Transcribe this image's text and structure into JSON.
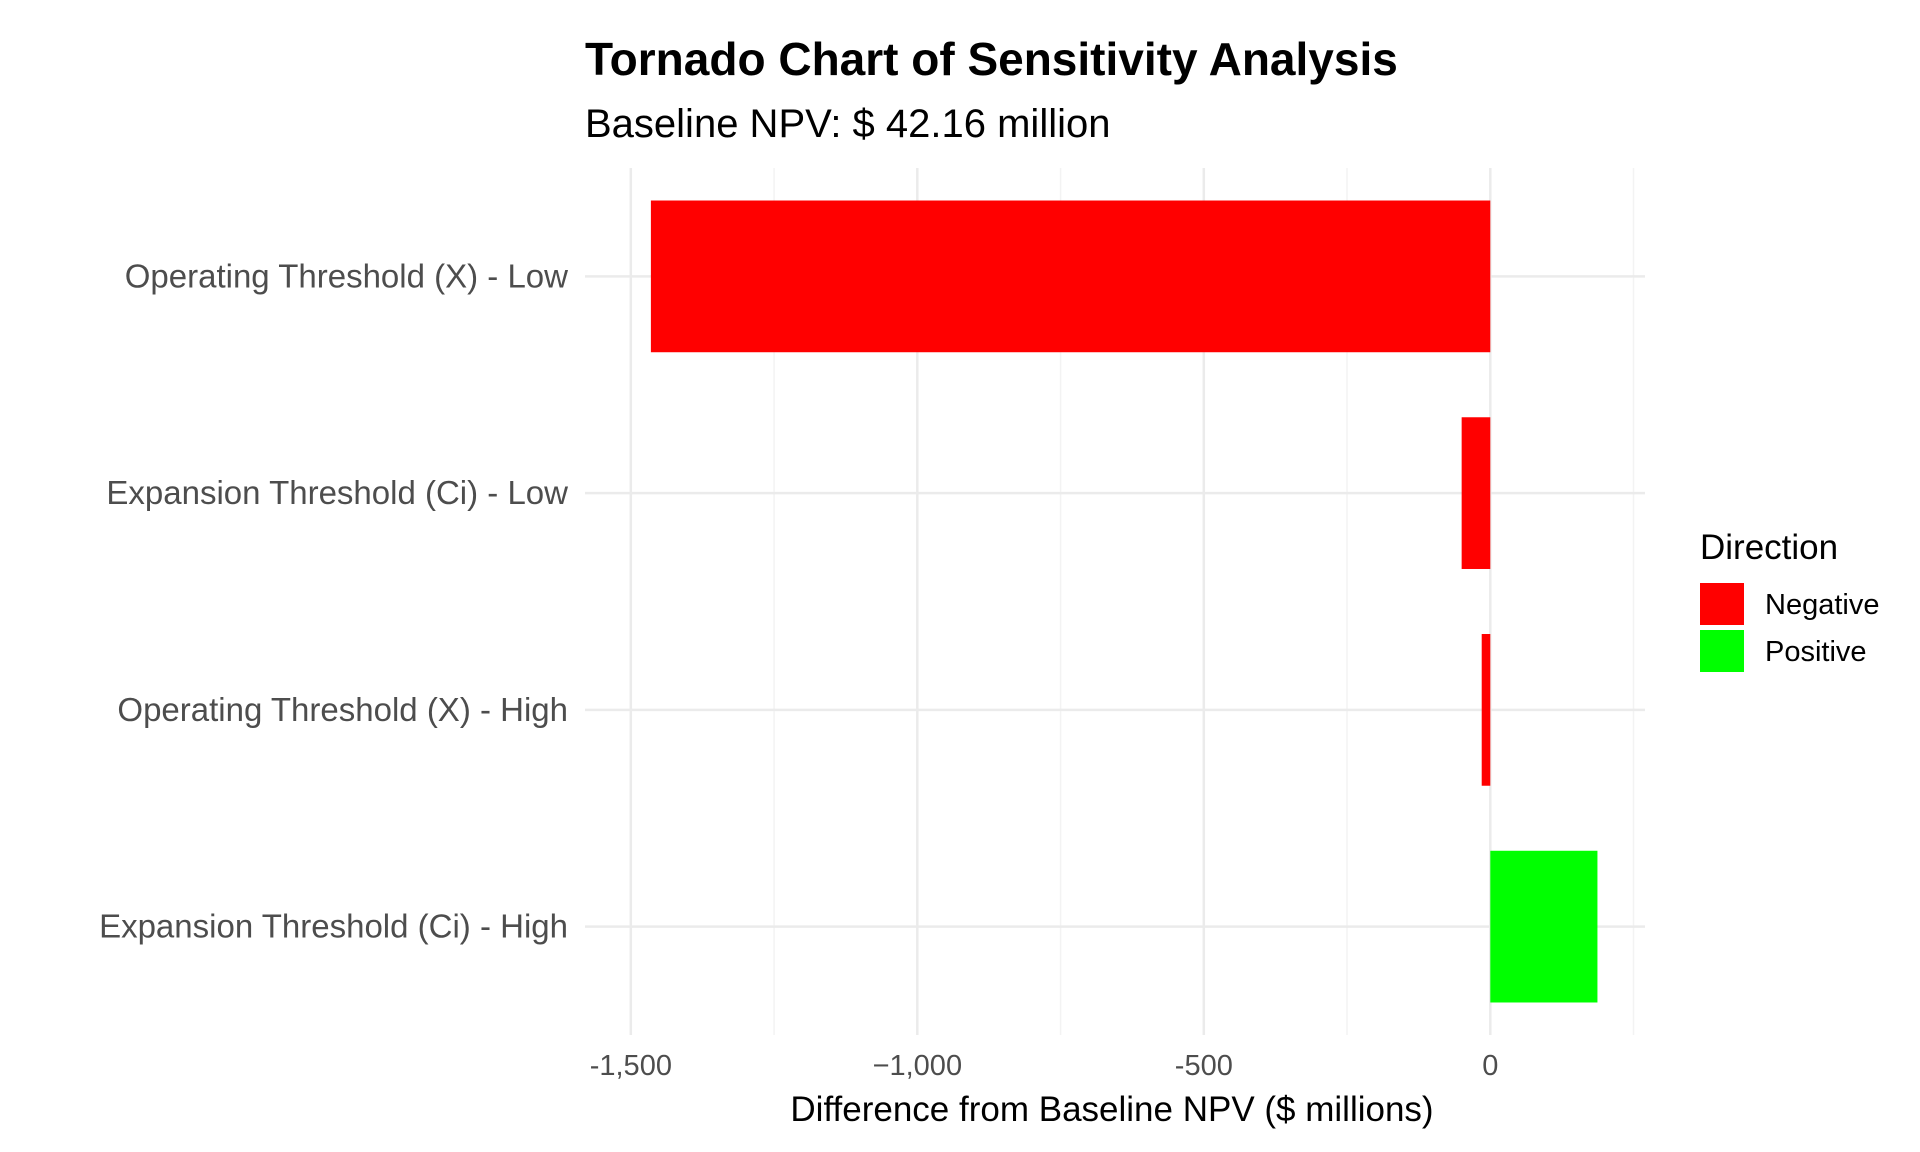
{
  "chart_data": {
    "type": "bar",
    "orientation": "horizontal",
    "title": "Tornado Chart of Sensitivity Analysis",
    "subtitle": "Baseline NPV: $ 42.16 million",
    "xlabel": "Difference from Baseline NPV ($ millions)",
    "ylabel": "",
    "xlim": [
      -1580,
      270
    ],
    "x_ticks": [
      -1500,
      -1000,
      -500,
      0
    ],
    "x_tick_labels": [
      "-1,500",
      "−1,000",
      "-500",
      "0"
    ],
    "x_minor_ticks": [
      -1250,
      -750,
      -250,
      250
    ],
    "grid": true,
    "categories": [
      "Operating Threshold (X) - Low",
      "Expansion Threshold (Ci) - Low",
      "Operating Threshold (X) - High",
      "Expansion Threshold (Ci) - High"
    ],
    "values": [
      -1465,
      -50,
      -15,
      187
    ],
    "direction": [
      "Negative",
      "Negative",
      "Negative",
      "Positive"
    ],
    "legend": {
      "title": "Direction",
      "position": "right",
      "entries": [
        {
          "label": "Negative",
          "color": "#ff0000"
        },
        {
          "label": "Positive",
          "color": "#00ff00"
        }
      ]
    },
    "colors": {
      "Negative": "#ff0000",
      "Positive": "#00ff00"
    }
  }
}
